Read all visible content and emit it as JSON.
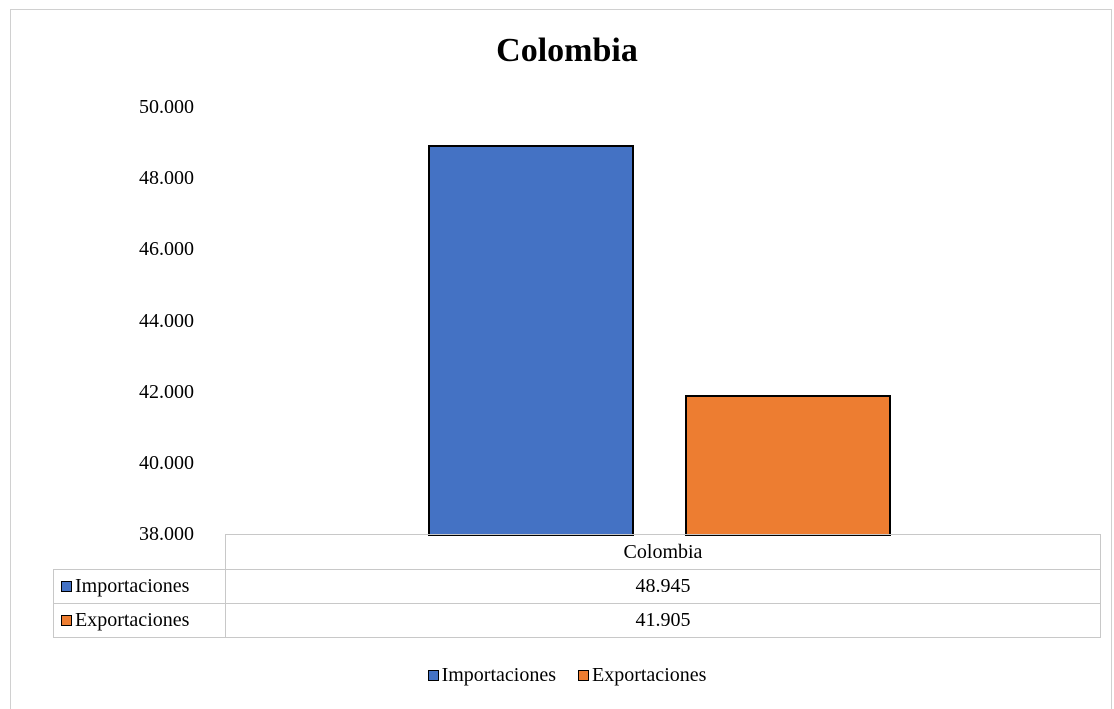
{
  "chart_data": {
    "type": "bar",
    "title": "Colombia",
    "categories": [
      "Colombia"
    ],
    "series": [
      {
        "name": "Importaciones",
        "values": [
          48945
        ],
        "display": "48.945",
        "color": "#4472C4"
      },
      {
        "name": "Exportaciones",
        "values": [
          41905
        ],
        "display": "41.905",
        "color": "#ED7D31"
      }
    ],
    "ylim": [
      38000,
      50000
    ],
    "yticks": [
      "50.000",
      "48.000",
      "46.000",
      "44.000",
      "42.000",
      "40.000",
      "38.000"
    ],
    "ytick_values": [
      50000,
      48000,
      46000,
      44000,
      42000,
      40000,
      38000
    ],
    "xlabel": "",
    "ylabel": "",
    "grid": false,
    "legend": "bottom",
    "data_table": true
  }
}
